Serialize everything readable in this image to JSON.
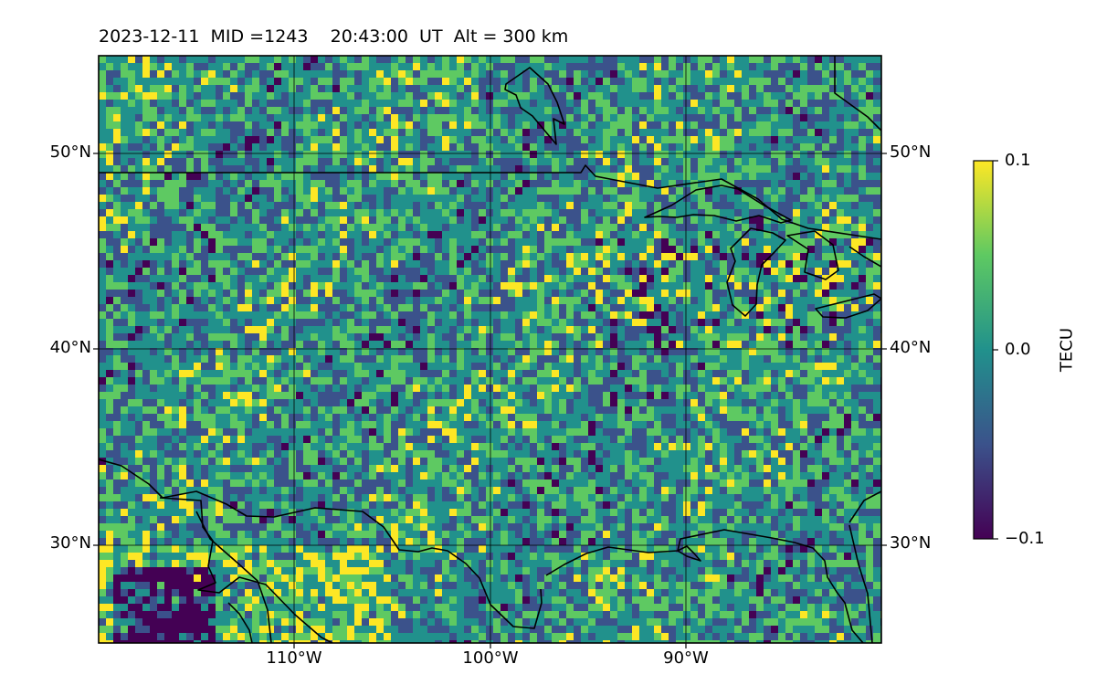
{
  "title": {
    "date": "2023-12-11",
    "mid": "MID =1243",
    "time": "20:43:00  UT",
    "altitude": "Alt = 300 km"
  },
  "map": {
    "lon_range": [
      -120,
      -80
    ],
    "lat_range": [
      25,
      55
    ],
    "gridlines": true,
    "lat_ticks": [
      "30°N",
      "40°N",
      "50°N"
    ],
    "lon_ticks": [
      "110°W",
      "100°W",
      "90°W"
    ],
    "background_color": "#21918c"
  },
  "colorbar": {
    "label": "TECU",
    "max_label": "0.1",
    "mid_label": "0.0",
    "min_label": "−0.1",
    "colormap": "viridis",
    "colors": [
      "#440154",
      "#3b528b",
      "#21918c",
      "#5ec962",
      "#fde725"
    ]
  }
}
